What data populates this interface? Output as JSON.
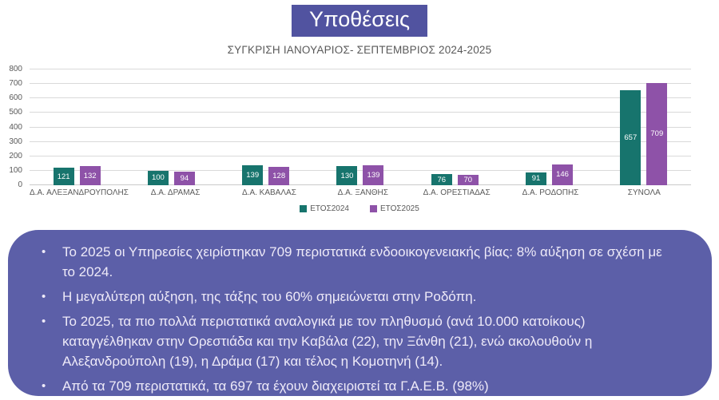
{
  "title": "Υποθέσεις",
  "subtitle": "ΣΥΓΚΡΙΣΗ ΙΑΝΟΥΑΡΙΟΣ- ΣΕΠΤΕΜΒΡΙΟΣ 2024-2025",
  "chart_data": {
    "type": "bar",
    "categories": [
      "Δ.Α. ΑΛΕΞΑΝΔΡΟΥΠΟΛΗΣ",
      "Δ.Α. ΔΡΑΜΑΣ",
      "Δ.Α. ΚΑΒΑΛΑΣ",
      "Δ.Α. ΞΑΝΘΗΣ",
      "Δ.Α. ΟΡΕΣΤΙΑΔΑΣ",
      "Δ.Α. ΡΟΔΟΠΗΣ",
      "ΣΥΝΟΛΑ"
    ],
    "series": [
      {
        "name": "ΕΤΟΣ2024",
        "color": "#17746d",
        "values": [
          121,
          100,
          139,
          130,
          76,
          91,
          657
        ]
      },
      {
        "name": "ΕΤΟΣ2025",
        "color": "#8e52a8",
        "values": [
          132,
          94,
          128,
          139,
          70,
          146,
          709
        ]
      }
    ],
    "ylim": [
      0,
      800
    ],
    "ytick_step": 100,
    "grid": true,
    "legend_position": "bottom",
    "data_labels": "inside-center"
  },
  "notes_panel": {
    "background": "#5c5fa8",
    "bullets": [
      "Το 2025 οι Υπηρεσίες χειρίστηκαν 709 περιστατικά ενδοοικογενειακής βίας: 8% αύξηση σε σχέση με το 2024.",
      "Η μεγαλύτερη αύξηση, της τάξης του 60% σημειώνεται στην Ροδόπη.",
      "Το 2025, τα πιο πολλά περιστατικά αναλογικά με τον πληθυσμό (ανά 10.000 κατοίκους) καταγγέλθηκαν στην Ορεστιάδα και την Καβάλα (22), την Ξάνθη (21), ενώ  ακολουθούν η Αλεξανδρούπολη  (19), η Δράμα (17) και τέλος η Κομοτηνή (14).",
      "Από τα 709 περιστατικά, τα 697 τα έχουν διαχειριστεί τα Γ.Α.Ε.Β.  (98%)"
    ]
  },
  "colors": {
    "title_box": "#5153a0",
    "axis_text": "#595959",
    "gridline": "#d9d9d9",
    "series_2024": "#17746d",
    "series_2025": "#8e52a8"
  }
}
